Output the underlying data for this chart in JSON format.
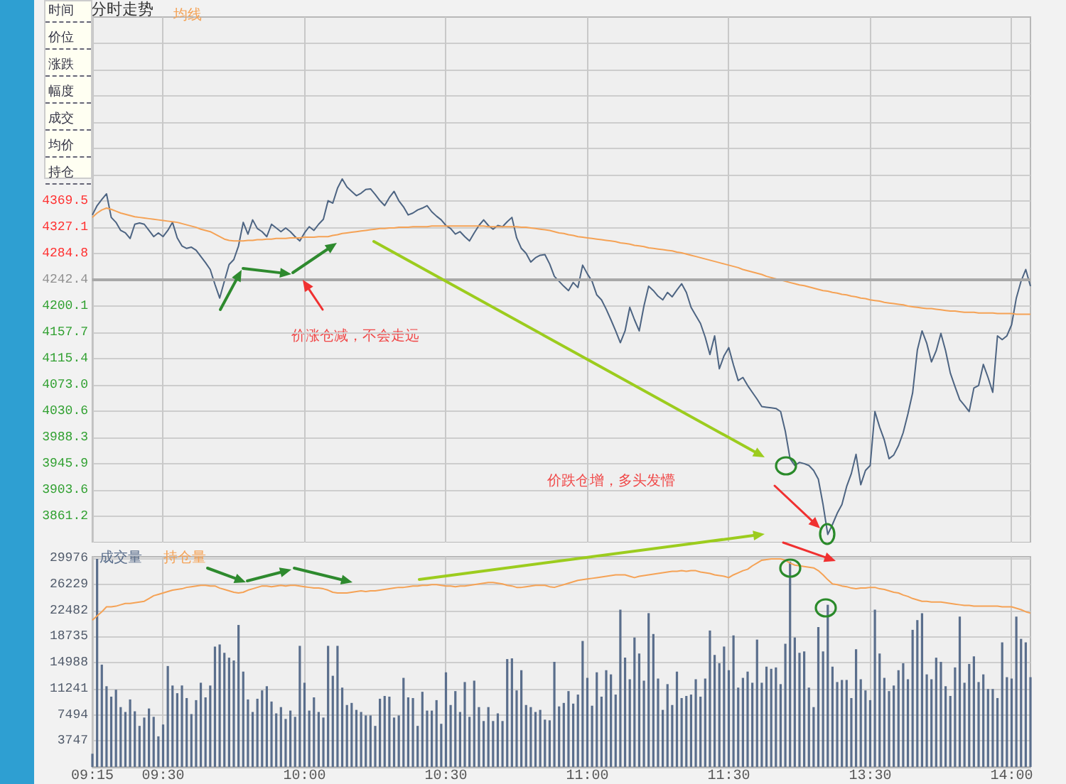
{
  "chart_data": [
    {
      "type": "line",
      "title": "分时走势",
      "legend": "top left",
      "grid": true,
      "marker": "none",
      "tick_labels": "y",
      "categories": [
        null,
        null,
        null,
        null,
        null,
        null,
        null,
        null,
        null,
        null,
        null,
        null,
        null,
        null,
        null,
        null,
        null,
        null,
        null,
        null,
        null,
        null,
        null,
        null,
        null,
        null,
        null,
        null,
        null,
        null,
        null,
        null,
        null,
        null,
        null,
        null,
        null,
        null,
        null,
        null,
        null,
        null,
        null,
        null,
        null,
        null,
        null,
        null,
        null,
        null,
        null,
        null,
        null,
        null,
        null,
        null,
        null,
        null,
        null,
        null,
        null,
        null,
        null,
        null,
        null,
        null,
        null,
        null,
        null,
        null,
        null,
        null,
        null,
        null,
        null,
        null,
        null,
        null,
        null,
        null,
        null,
        null,
        null,
        null,
        null,
        null,
        null,
        null,
        null,
        null,
        null,
        null,
        null,
        null,
        null,
        null,
        null,
        null,
        null,
        null,
        null,
        null,
        null,
        null,
        null,
        null,
        null,
        null,
        null,
        null,
        null,
        null,
        null,
        null,
        null,
        null,
        null,
        null,
        null,
        null,
        null,
        null,
        null,
        null,
        null,
        null,
        null,
        null,
        null,
        null,
        null,
        null,
        null,
        null,
        null,
        null,
        null,
        null,
        null,
        null,
        null,
        null,
        null,
        null,
        null,
        null,
        null,
        null,
        null,
        null,
        null,
        null,
        null,
        null,
        null,
        null,
        null,
        null,
        null,
        null,
        null,
        null,
        null,
        null,
        null,
        null,
        null,
        null,
        null,
        null,
        null,
        null,
        null,
        null,
        null,
        null,
        null,
        null,
        null,
        null,
        null,
        null,
        null,
        null,
        null,
        null,
        null,
        null,
        null,
        null,
        null,
        null,
        null,
        null,
        null,
        null,
        null,
        null,
        null,
        null
      ],
      "ylim": [
        3818.8,
        4666.0
      ],
      "yticks": [
        3861.2,
        3903.6,
        3945.9,
        3988.3,
        4030.6,
        {
          "value": 4073.0,
          "label": "4073.0"
        },
        4115.4,
        4157.7,
        4200.1,
        4242.4,
        4284.8,
        4327.1,
        4369.5,
        {
          "value": 4411.9,
          "label": null
        },
        {
          "value": 4454.2,
          "label": null
        },
        {
          "value": 4496.6,
          "label": null
        },
        {
          "value": 4538.9,
          "label": null
        },
        {
          "value": 4581.3,
          "label": null
        },
        {
          "value": 4623.6,
          "label": null
        }
      ],
      "ref_lines": [
        {
          "axis": "y",
          "value": 4242.4,
          "color": "#a8a8a8"
        }
      ],
      "annotations": [
        "价涨仓减，不会走远",
        "价跌仓增，多头发懵"
      ],
      "series": [
        {
          "color": "#4d6482",
          "values": [
            4347,
            4362,
            4372,
            4381,
            4343,
            4335,
            4322,
            4318,
            4309,
            4332,
            4334,
            4332,
            4322,
            4312,
            4318,
            4312,
            4322,
            4335,
            4310,
            4297,
            4293,
            4295,
            4290,
            4280,
            4270,
            4259,
            4235,
            4213,
            4240,
            4267,
            4275,
            4297,
            4335,
            4316,
            4339,
            4325,
            4320,
            4312,
            4332,
            4326,
            4320,
            4326,
            4320,
            4312,
            4305,
            4318,
            4328,
            4322,
            4332,
            4340,
            4370,
            4366,
            4390,
            4405,
            4392,
            4385,
            4378,
            4382,
            4388,
            4389,
            4380,
            4370,
            4362,
            4375,
            4385,
            4370,
            4360,
            4347,
            4350,
            4355,
            4358,
            4362,
            4352,
            4345,
            4339,
            4330,
            4325,
            4316,
            4320,
            4312,
            4305,
            4318,
            4330,
            4339,
            4330,
            4324,
            4330,
            4328,
            4336,
            4343,
            4310,
            4293,
            4285,
            4271,
            4278,
            4282,
            4283,
            4268,
            4248,
            4240,
            4232,
            4225,
            4238,
            4230,
            4266,
            4252,
            4240,
            4218,
            4210,
            4195,
            4178,
            4160,
            4141,
            4160,
            4198,
            4178,
            4160,
            4200,
            4232,
            4225,
            4216,
            4210,
            4222,
            4215,
            4226,
            4236,
            4222,
            4198,
            4185,
            4172,
            4150,
            4122,
            4152,
            4099,
            4120,
            4133,
            4105,
            4080,
            4085,
            4072,
            4061,
            4050,
            4038,
            4037,
            4036,
            4035,
            4030,
            3998,
            3954,
            3943,
            3948,
            3946,
            3943,
            3935,
            3921,
            3880,
            3832,
            3848,
            3866,
            3880,
            3909,
            3930,
            3961,
            3912,
            3935,
            3943,
            4030,
            4005,
            3984,
            3954,
            3960,
            3975,
            3996,
            4026,
            4060,
            4129,
            4160,
            4140,
            4110,
            4128,
            4156,
            4128,
            4092,
            4070,
            4049,
            4040,
            4030,
            4068,
            4072,
            4106,
            4085,
            4061,
            4152,
            4146,
            4152,
            4170,
            4213,
            4240,
            4259,
            4232
          ]
        },
        {
          "name": "均线",
          "color": "#f5a255",
          "values": [
            4343,
            4350,
            4355,
            4358,
            4356,
            4353,
            4350,
            4348,
            4346,
            4344,
            4343,
            4342,
            4341,
            4340,
            4339,
            4338,
            4337,
            4336,
            4335,
            4333,
            4331,
            4329,
            4327,
            4324,
            4322,
            4320,
            4316,
            4312,
            4308,
            4306,
            4305,
            4305,
            4305,
            4306,
            4306,
            4307,
            4307,
            4308,
            4308,
            4309,
            4309,
            4309,
            4310,
            4310,
            4310,
            4311,
            4311,
            4311,
            4312,
            4312,
            4312,
            4314,
            4315,
            4317,
            4318,
            4319,
            4320,
            4321,
            4322,
            4323,
            4324,
            4325,
            4325,
            4326,
            4326,
            4327,
            4327,
            4327,
            4328,
            4328,
            4328,
            4328,
            4329,
            4329,
            4329,
            4329,
            4329,
            4329,
            4329,
            4329,
            4329,
            4329,
            4329,
            4329,
            4328,
            4328,
            4328,
            4328,
            4328,
            4328,
            4328,
            4327,
            4327,
            4326,
            4325,
            4324,
            4323,
            4322,
            4320,
            4318,
            4317,
            4315,
            4314,
            4312,
            4311,
            4310,
            4309,
            4308,
            4307,
            4306,
            4305,
            4304,
            4302,
            4301,
            4300,
            4298,
            4297,
            4296,
            4294,
            4293,
            4292,
            4291,
            4290,
            4289,
            4287,
            4286,
            4284,
            4282,
            4280,
            4278,
            4276,
            4274,
            4272,
            4270,
            4268,
            4266,
            4264,
            4262,
            4259,
            4257,
            4255,
            4253,
            4251,
            4248,
            4246,
            4244,
            4242,
            4240,
            4238,
            4236,
            4234,
            4233,
            4231,
            4229,
            4227,
            4225,
            4224,
            4222,
            4221,
            4219,
            4218,
            4216,
            4215,
            4213,
            4212,
            4210,
            4209,
            4208,
            4206,
            4205,
            4204,
            4203,
            4202,
            4200,
            4199,
            4198,
            4197,
            4196,
            4196,
            4195,
            4194,
            4193,
            4192,
            4192,
            4191,
            4190,
            4190,
            4190,
            4189,
            4189,
            4189,
            4189,
            4188,
            4188,
            4188,
            4188,
            4187,
            4187,
            4187,
            4187
          ]
        }
      ]
    },
    {
      "type": "bar",
      "legend": "top left",
      "grid": true,
      "marker": "none",
      "categories": [
        "09:15",
        null,
        null,
        null,
        null,
        null,
        null,
        null,
        null,
        null,
        null,
        null,
        null,
        null,
        null,
        "09:30",
        null,
        null,
        null,
        null,
        null,
        null,
        null,
        null,
        null,
        null,
        null,
        null,
        null,
        null,
        null,
        null,
        null,
        null,
        null,
        null,
        null,
        null,
        null,
        null,
        null,
        null,
        null,
        null,
        null,
        "10:00",
        null,
        null,
        null,
        null,
        null,
        null,
        null,
        null,
        null,
        null,
        null,
        null,
        null,
        null,
        null,
        null,
        null,
        null,
        null,
        null,
        null,
        null,
        null,
        null,
        null,
        null,
        null,
        null,
        null,
        "10:30",
        null,
        null,
        null,
        null,
        null,
        null,
        null,
        null,
        null,
        null,
        null,
        null,
        null,
        null,
        null,
        null,
        null,
        null,
        null,
        null,
        null,
        null,
        null,
        null,
        null,
        null,
        null,
        null,
        null,
        "11:00",
        null,
        null,
        null,
        null,
        null,
        null,
        null,
        null,
        null,
        null,
        null,
        null,
        null,
        null,
        null,
        null,
        null,
        null,
        null,
        null,
        null,
        null,
        null,
        null,
        null,
        null,
        null,
        null,
        null,
        "11:30",
        null,
        null,
        null,
        null,
        null,
        null,
        null,
        null,
        null,
        null,
        null,
        null,
        null,
        null,
        null,
        null,
        null,
        null,
        null,
        null,
        null,
        null,
        null,
        null,
        null,
        null,
        null,
        null,
        null,
        "13:30",
        null,
        null,
        null,
        null,
        null,
        null,
        null,
        null,
        null,
        null,
        null,
        null,
        null,
        null,
        null,
        null,
        null,
        null,
        null,
        null,
        null,
        null,
        null,
        null,
        null,
        null,
        null,
        null,
        null,
        "14:00",
        null,
        null,
        null,
        null
      ],
      "ylim": [
        0,
        30200
      ],
      "yticks": [
        3747,
        7494,
        11241,
        14988,
        18735,
        22482,
        26229,
        29976
      ],
      "series": [
        {
          "name": "成交量",
          "color": "#5a6e8c",
          "values": [
            1900,
            29900,
            14700,
            11600,
            10100,
            11100,
            8600,
            7900,
            9700,
            8000,
            5900,
            7100,
            8400,
            7200,
            4400,
            6100,
            14500,
            11700,
            10600,
            11700,
            9900,
            7600,
            9600,
            12100,
            10000,
            11700,
            17300,
            17600,
            16400,
            15700,
            15300,
            20400,
            13700,
            9700,
            7900,
            9800,
            11000,
            11600,
            9400,
            7700,
            8600,
            6900,
            8100,
            7200,
            17400,
            12100,
            8100,
            10000,
            7900,
            7100,
            17400,
            13100,
            17400,
            11400,
            8900,
            9200,
            8200,
            7900,
            7400,
            7400,
            5900,
            9800,
            10200,
            10100,
            7100,
            7400,
            12800,
            10000,
            9900,
            5900,
            10800,
            8100,
            8100,
            9600,
            6200,
            13600,
            8900,
            10900,
            7900,
            12200,
            7200,
            12400,
            8600,
            6600,
            8600,
            6600,
            7700,
            6600,
            15500,
            15600,
            11000,
            13900,
            8900,
            8600,
            7900,
            8200,
            6800,
            6700,
            15100,
            8700,
            9200,
            10900,
            9100,
            10400,
            18100,
            12800,
            8800,
            13600,
            10100,
            13900,
            13300,
            10400,
            22600,
            15700,
            12600,
            18600,
            16300,
            12400,
            22100,
            19100,
            12700,
            8200,
            11900,
            8900,
            13700,
            9900,
            10200,
            10400,
            12600,
            10100,
            12700,
            19600,
            16100,
            14900,
            17300,
            13900,
            18900,
            11400,
            12800,
            13700,
            12100,
            18300,
            12100,
            14400,
            14100,
            14300,
            11900,
            17700,
            29500,
            18600,
            16400,
            16600,
            11400,
            8600,
            20100,
            16600,
            23300,
            14400,
            12200,
            12500,
            12500,
            9900,
            16900,
            12600,
            11000,
            9600,
            22600,
            16300,
            12800,
            10900,
            11700,
            13900,
            14900,
            12600,
            19700,
            21100,
            22100,
            13300,
            12600,
            15700,
            15100,
            11600,
            10200,
            14300,
            21600,
            12100,
            14800,
            15900,
            12200,
            13300,
            11200,
            11200,
            9900,
            17900,
            12900,
            12700,
            21600,
            18400,
            17900,
            12900
          ]
        },
        {
          "name": "持仓量",
          "type": "line",
          "color": "#f5a255",
          "values": [
            21100,
            21700,
            22300,
            23000,
            23000,
            23100,
            23300,
            23500,
            23500,
            23600,
            23700,
            23800,
            24200,
            24600,
            24800,
            25000,
            25200,
            25400,
            25500,
            25600,
            25800,
            25900,
            26000,
            26100,
            26100,
            26000,
            26000,
            25700,
            25500,
            25300,
            25100,
            25000,
            25100,
            25400,
            25600,
            25800,
            26000,
            26000,
            25900,
            26000,
            26100,
            26000,
            26100,
            26100,
            26000,
            25900,
            25800,
            25700,
            25700,
            25600,
            25400,
            25100,
            25000,
            25000,
            25000,
            25100,
            25200,
            25300,
            25200,
            25300,
            25300,
            25400,
            25500,
            25600,
            25700,
            25800,
            25800,
            25900,
            26000,
            26000,
            26100,
            26100,
            26200,
            26200,
            26100,
            26000,
            26000,
            25900,
            26000,
            26000,
            26100,
            26200,
            26300,
            26400,
            26500,
            26500,
            26400,
            26300,
            26100,
            26000,
            25800,
            25800,
            25900,
            26000,
            26100,
            26100,
            26100,
            25900,
            25800,
            26000,
            26200,
            26400,
            26600,
            26800,
            26900,
            27000,
            27100,
            27200,
            27300,
            27400,
            27500,
            27600,
            27600,
            27600,
            27400,
            27200,
            27400,
            27500,
            27600,
            27700,
            27800,
            27900,
            28000,
            28100,
            28100,
            28200,
            28100,
            28200,
            28200,
            28000,
            27900,
            27800,
            27600,
            27500,
            27400,
            27200,
            27600,
            27900,
            28200,
            28400,
            28900,
            29300,
            29700,
            29800,
            29900,
            29900,
            29900,
            29700,
            29300,
            29000,
            28900,
            28800,
            28700,
            28600,
            28200,
            27600,
            26900,
            26300,
            26200,
            26000,
            25900,
            25700,
            25600,
            25700,
            25700,
            25800,
            25800,
            25600,
            25500,
            25300,
            25100,
            25000,
            24700,
            24500,
            24200,
            24000,
            23800,
            23800,
            23700,
            23700,
            23700,
            23600,
            23500,
            23400,
            23300,
            23200,
            23200,
            23100,
            23100,
            23100,
            23100,
            23100,
            23100,
            23000,
            23000,
            23000,
            22800,
            22600,
            22300,
            22100
          ]
        }
      ]
    },
    {
      "type": "other",
      "annotations": [
        "时间",
        "价位",
        "涨跌",
        "幅度",
        "成交",
        "均价",
        "持仓"
      ]
    }
  ]
}
